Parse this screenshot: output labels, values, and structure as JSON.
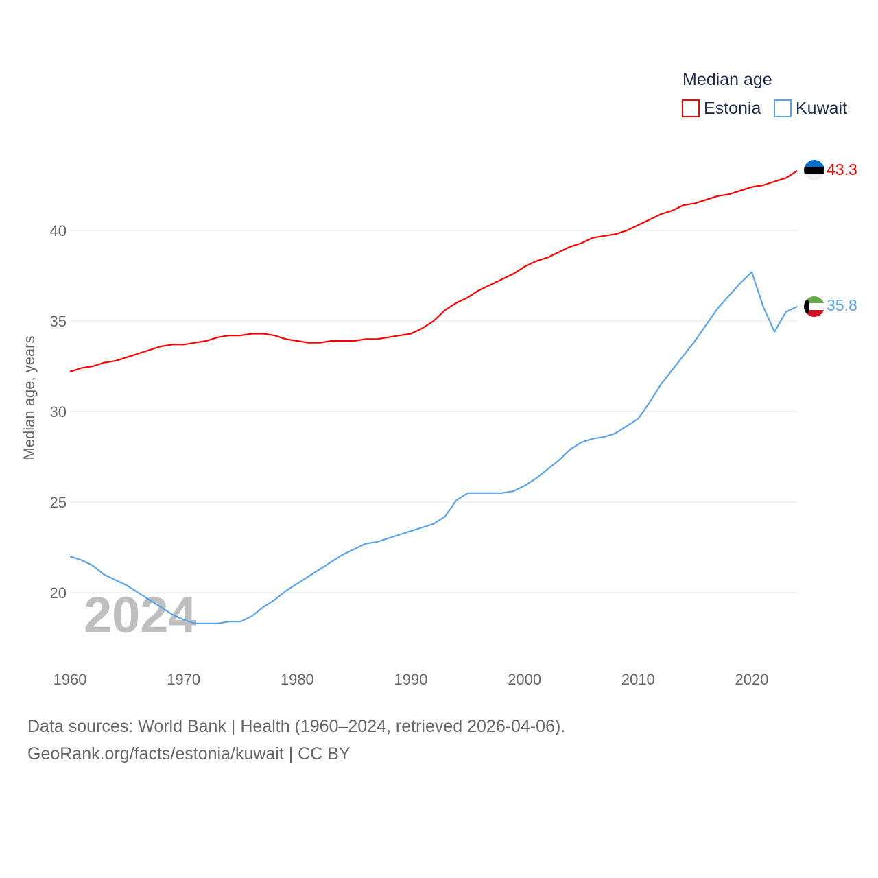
{
  "chart_data": {
    "type": "line",
    "title": "",
    "legend_title": "Median age",
    "legend_placement": "top-right",
    "xlabel": "",
    "ylabel": "Median age, years",
    "xlim": [
      1960,
      2024
    ],
    "ylim": [
      17,
      44
    ],
    "x_ticks": [
      "1960",
      "1970",
      "1980",
      "1990",
      "2000",
      "2010",
      "2020"
    ],
    "y_ticks": [
      "20",
      "25",
      "30",
      "35",
      "40"
    ],
    "grid": true,
    "watermark_year": "2024",
    "x": [
      1960,
      1961,
      1962,
      1963,
      1964,
      1965,
      1966,
      1967,
      1968,
      1969,
      1970,
      1971,
      1972,
      1973,
      1974,
      1975,
      1976,
      1977,
      1978,
      1979,
      1980,
      1981,
      1982,
      1983,
      1984,
      1985,
      1986,
      1987,
      1988,
      1989,
      1990,
      1991,
      1992,
      1993,
      1994,
      1995,
      1996,
      1997,
      1998,
      1999,
      2000,
      2001,
      2002,
      2003,
      2004,
      2005,
      2006,
      2007,
      2008,
      2009,
      2010,
      2011,
      2012,
      2013,
      2014,
      2015,
      2016,
      2017,
      2018,
      2019,
      2020,
      2021,
      2022,
      2023,
      2024
    ],
    "series": [
      {
        "name": "Estonia",
        "color": "#ff0000",
        "end_label": "43.3",
        "values": [
          32.2,
          32.4,
          32.5,
          32.7,
          32.8,
          33.0,
          33.2,
          33.4,
          33.6,
          33.7,
          33.7,
          33.8,
          33.9,
          34.1,
          34.2,
          34.2,
          34.3,
          34.3,
          34.2,
          34.0,
          33.9,
          33.8,
          33.8,
          33.9,
          33.9,
          33.9,
          34.0,
          34.0,
          34.1,
          34.2,
          34.3,
          34.6,
          35.0,
          35.6,
          36.0,
          36.3,
          36.7,
          37.0,
          37.3,
          37.6,
          38.0,
          38.3,
          38.5,
          38.8,
          39.1,
          39.3,
          39.6,
          39.7,
          39.8,
          40.0,
          40.3,
          40.6,
          40.9,
          41.1,
          41.4,
          41.5,
          41.7,
          41.9,
          42.0,
          42.2,
          42.4,
          42.5,
          42.7,
          42.9,
          43.3
        ]
      },
      {
        "name": "Kuwait",
        "color": "#5ba3ea",
        "end_label": "35.8",
        "values": [
          22.0,
          21.8,
          21.5,
          21.0,
          20.7,
          20.4,
          20.0,
          19.6,
          19.2,
          18.8,
          18.5,
          18.3,
          18.3,
          18.3,
          18.4,
          18.4,
          18.7,
          19.2,
          19.6,
          20.1,
          20.5,
          20.9,
          21.3,
          21.7,
          22.1,
          22.4,
          22.7,
          22.8,
          23.0,
          23.2,
          23.4,
          23.6,
          23.8,
          24.2,
          25.1,
          25.5,
          25.5,
          25.5,
          25.5,
          25.6,
          25.9,
          26.3,
          26.8,
          27.3,
          27.9,
          28.3,
          28.5,
          28.6,
          28.8,
          29.2,
          29.6,
          30.5,
          31.5,
          32.3,
          33.1,
          33.9,
          34.8,
          35.7,
          36.4,
          37.1,
          37.7,
          35.8,
          34.4,
          35.5,
          35.8
        ]
      }
    ]
  },
  "footer": {
    "line1": "Data sources: World Bank | Health (1960–2024, retrieved 2026-04-06).",
    "line2": "GeoRank.org/facts/estonia/kuwait | CC BY"
  }
}
